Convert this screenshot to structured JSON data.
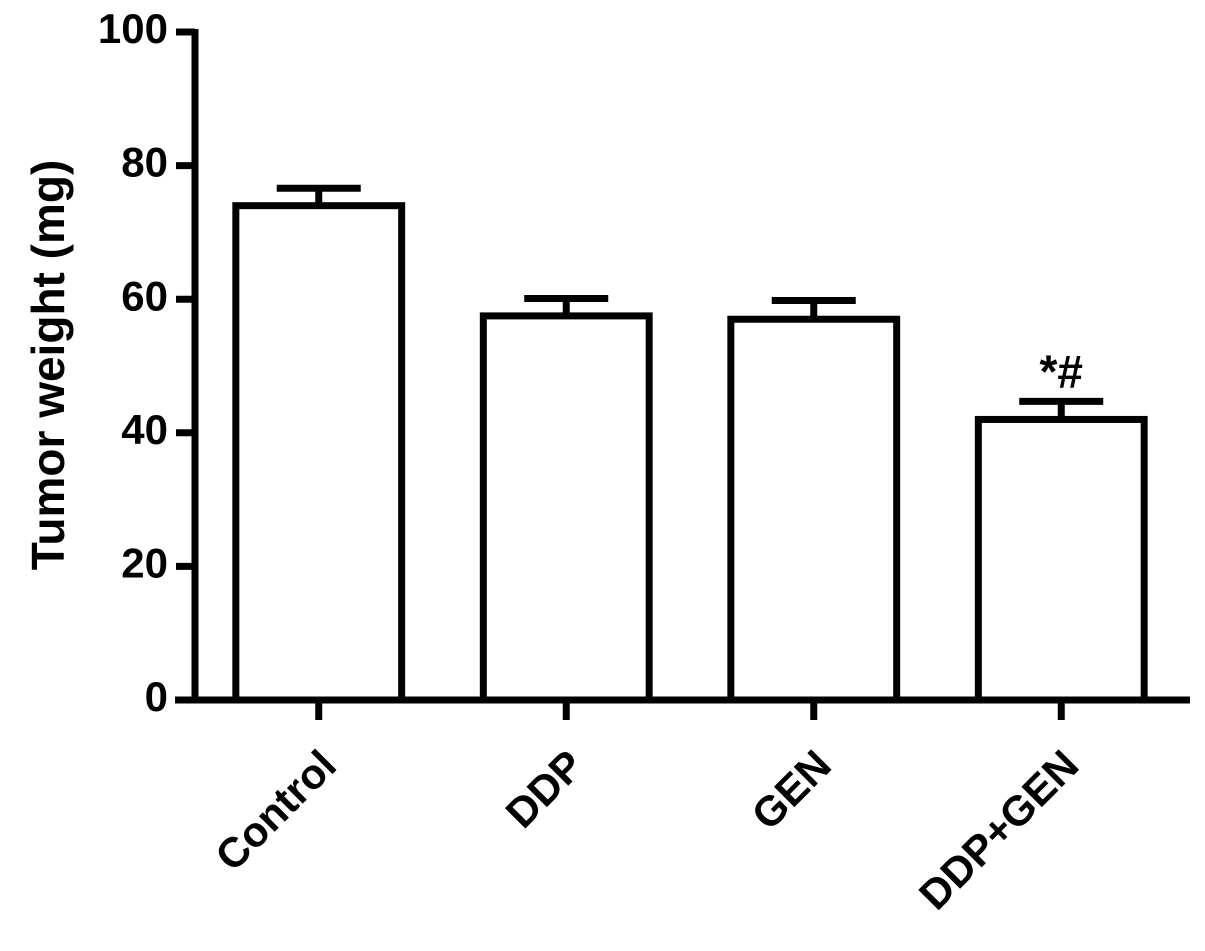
{
  "chart_data": {
    "type": "bar",
    "y_label": "Tumor weight (mg)",
    "categories": [
      "Control",
      "DDP",
      "GEN",
      "DDP+GEN"
    ],
    "values": [
      74,
      57.5,
      57,
      42
    ],
    "errors": [
      2.6,
      2.6,
      2.8,
      2.7
    ],
    "annotations": [
      null,
      null,
      null,
      "*#"
    ],
    "color": "#ffffff",
    "ylim": [
      0,
      100
    ],
    "yticks": [
      0,
      20,
      40,
      60,
      80,
      100
    ],
    "grid": false
  }
}
